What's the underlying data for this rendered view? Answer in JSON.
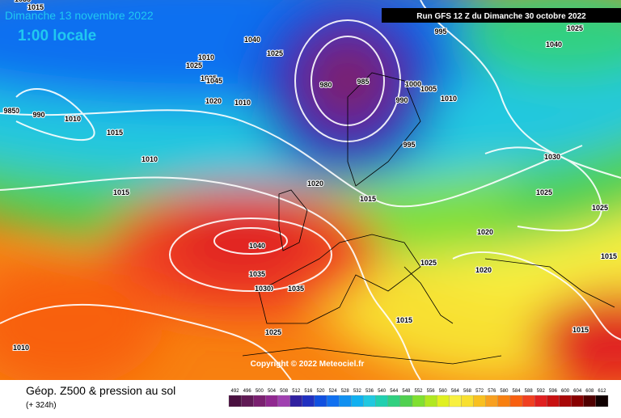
{
  "header": {
    "date": "Dimanche 13 novembre 2022",
    "time": "1:00 locale",
    "run": "Run GFS 12 Z du Dimanche 30 octobre 2022"
  },
  "copyright": "Copyright © 2022 Meteociel.fr",
  "footer": {
    "title": "Géop. Z500 & pression au sol",
    "lead": "(+ 324h)"
  },
  "isobar_labels": [
    "1015",
    "1010",
    "1035",
    "1035",
    "1030",
    "1040",
    "1025",
    "1045",
    "1020",
    "1010",
    "1040",
    "1025",
    "980",
    "985",
    "990",
    "995",
    "995",
    "1000",
    "1005",
    "1010",
    "1025",
    "985",
    "990",
    "1010",
    "1015",
    "1010",
    "1015",
    "1020",
    "1015",
    "1020",
    "1030",
    "1025",
    "1025",
    "1040",
    "1035",
    "1030",
    "1035",
    "1025",
    "1020",
    "1025",
    "1015",
    "1015",
    "1010",
    "1015",
    "1010"
  ],
  "colorbar": {
    "labels": [
      492,
      496,
      500,
      504,
      508,
      512,
      516,
      520,
      524,
      528,
      532,
      536,
      540,
      544,
      548,
      552,
      556,
      560,
      564,
      568,
      572,
      576,
      580,
      584,
      588,
      592,
      596,
      600,
      604,
      608,
      612
    ],
    "colors": [
      "#4a1040",
      "#601a55",
      "#7a2070",
      "#902890",
      "#a040b0",
      "#3020a0",
      "#2030c0",
      "#1050e0",
      "#1070f0",
      "#1090f0",
      "#10b0f0",
      "#20c8e0",
      "#20d0b0",
      "#30d080",
      "#50d050",
      "#80e030",
      "#b0e820",
      "#e0f020",
      "#f8f040",
      "#f8e030",
      "#f8c020",
      "#f8a020",
      "#f88010",
      "#f86010",
      "#f04020",
      "#e02020",
      "#c81010",
      "#a80808",
      "#880000",
      "#500000",
      "#100000"
    ]
  }
}
